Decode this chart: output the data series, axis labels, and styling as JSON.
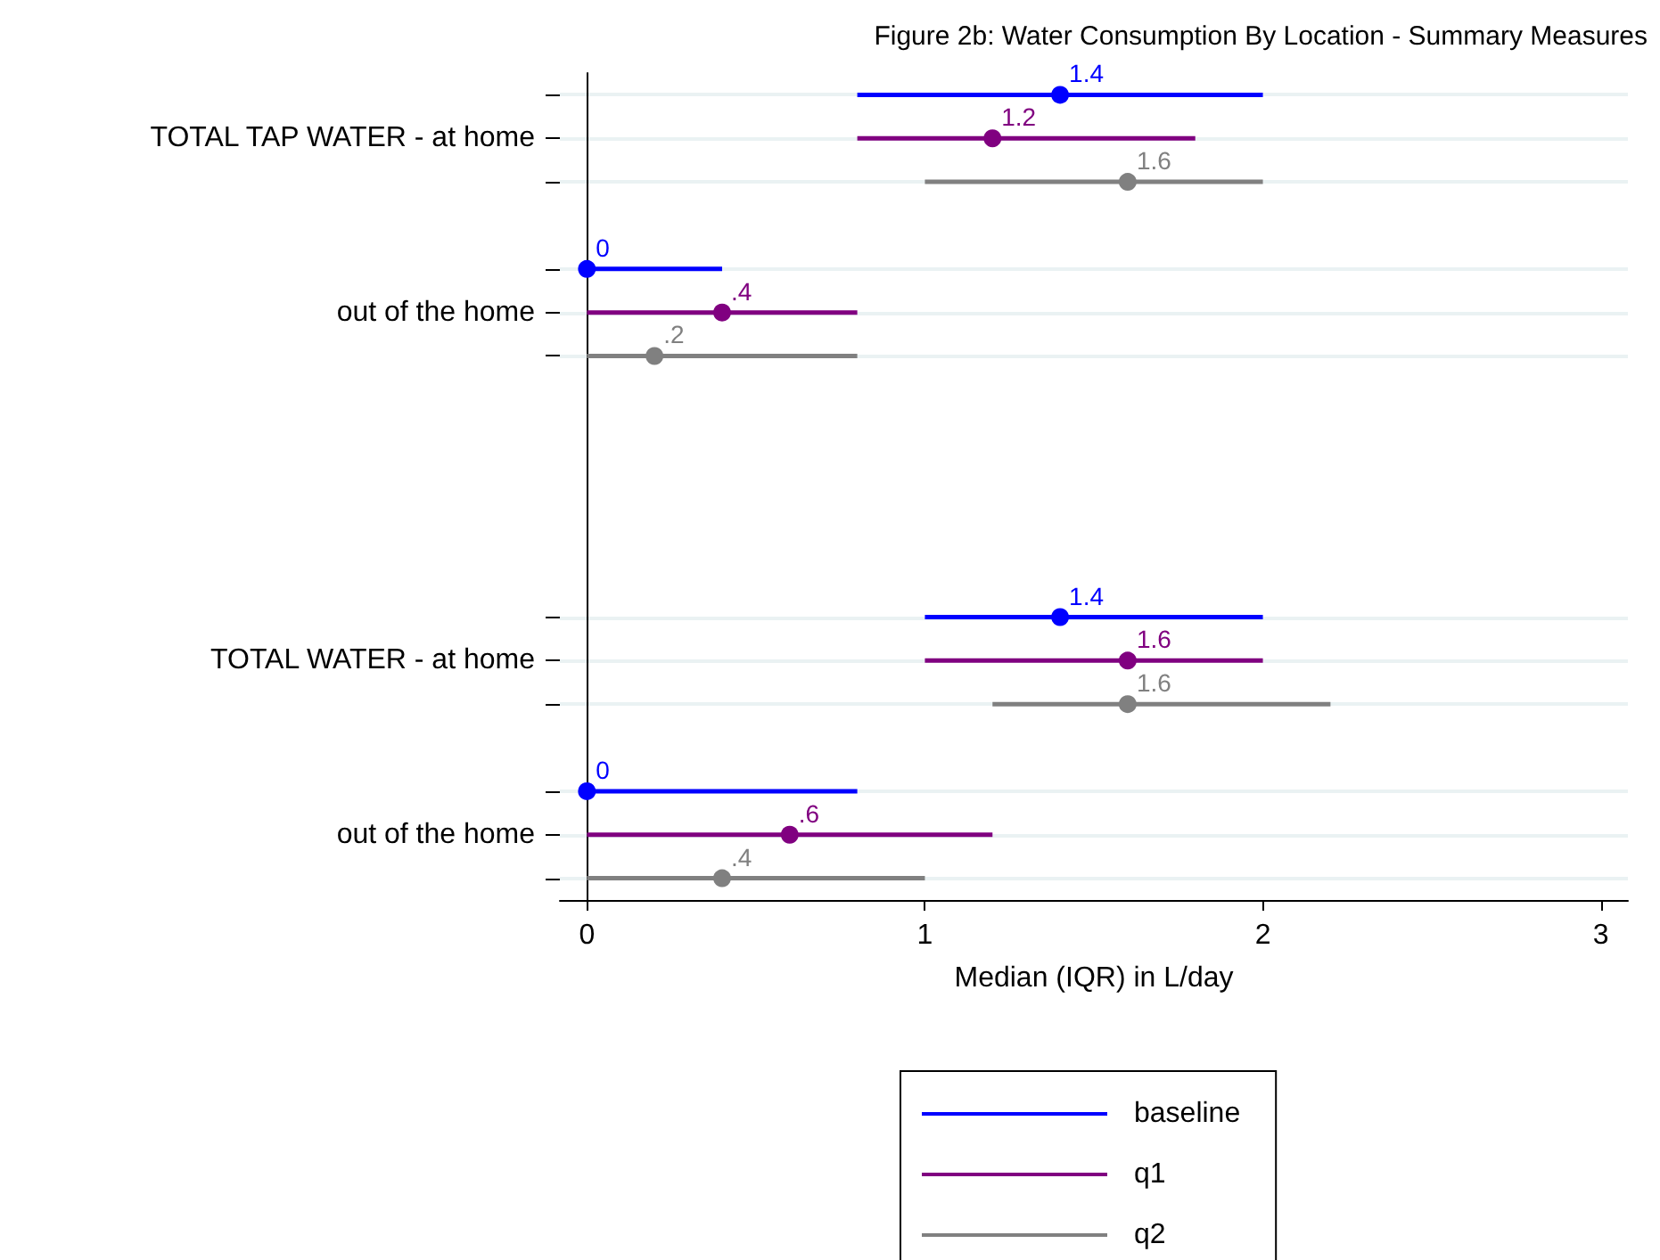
{
  "chart_data": {
    "type": "scatter",
    "orientation": "horizontal",
    "title": "Figure 2b: Water Consumption By Location - Summary Measures",
    "xlabel": "Median (IQR) in L/day",
    "categories": [
      null,
      "TOTAL TAP WATER - at home",
      null,
      null,
      null,
      "out of the home",
      null,
      null,
      null,
      null,
      null,
      null,
      null,
      "TOTAL WATER - at home",
      null,
      null,
      null,
      "out of the home",
      null
    ],
    "series": [
      {
        "name": "baseline",
        "color": "#0000ff",
        "values": [
          1.4,
          null,
          null,
          null,
          0,
          null,
          null,
          null,
          null,
          null,
          null,
          null,
          1.4,
          null,
          null,
          null,
          0,
          null,
          null
        ],
        "errors": [
          [
            0.8,
            2.0
          ],
          null,
          null,
          null,
          [
            0,
            0.4
          ],
          null,
          null,
          null,
          null,
          null,
          null,
          null,
          [
            1.0,
            2.0
          ],
          null,
          null,
          null,
          [
            0,
            0.8
          ],
          null,
          null
        ],
        "value_labels": [
          "1.4",
          null,
          null,
          null,
          "0",
          null,
          null,
          null,
          null,
          null,
          null,
          null,
          "1.4",
          null,
          null,
          null,
          "0",
          null,
          null
        ]
      },
      {
        "name": "q1",
        "color": "#800080",
        "values": [
          null,
          1.2,
          null,
          null,
          null,
          0.4,
          null,
          null,
          null,
          null,
          null,
          null,
          null,
          1.6,
          null,
          null,
          null,
          0.6,
          null
        ],
        "errors": [
          null,
          [
            0.8,
            1.8
          ],
          null,
          null,
          null,
          [
            0,
            0.8
          ],
          null,
          null,
          null,
          null,
          null,
          null,
          null,
          [
            1.0,
            2.0
          ],
          null,
          null,
          null,
          [
            0,
            1.2
          ],
          null
        ],
        "value_labels": [
          null,
          "1.2",
          null,
          null,
          null,
          ".4",
          null,
          null,
          null,
          null,
          null,
          null,
          null,
          "1.6",
          null,
          null,
          null,
          ".6",
          null
        ]
      },
      {
        "name": "q2",
        "color": "#808080",
        "values": [
          null,
          null,
          1.6,
          null,
          null,
          null,
          0.2,
          null,
          null,
          null,
          null,
          null,
          null,
          null,
          1.6,
          null,
          null,
          null,
          0.4
        ],
        "errors": [
          null,
          null,
          [
            1.0,
            2.0
          ],
          null,
          null,
          null,
          [
            0,
            0.8
          ],
          null,
          null,
          null,
          null,
          null,
          null,
          null,
          [
            1.2,
            2.2
          ],
          null,
          null,
          null,
          [
            0,
            1.0
          ]
        ],
        "value_labels": [
          null,
          null,
          "1.6",
          null,
          null,
          null,
          ".2",
          null,
          null,
          null,
          null,
          null,
          null,
          null,
          "1.6",
          null,
          null,
          null,
          ".4"
        ]
      }
    ],
    "xlim": [
      -0.08,
      3.08
    ],
    "xticks": [
      0,
      1,
      2,
      3
    ],
    "grid": "y",
    "legend": "bottom",
    "marker": "circle"
  }
}
